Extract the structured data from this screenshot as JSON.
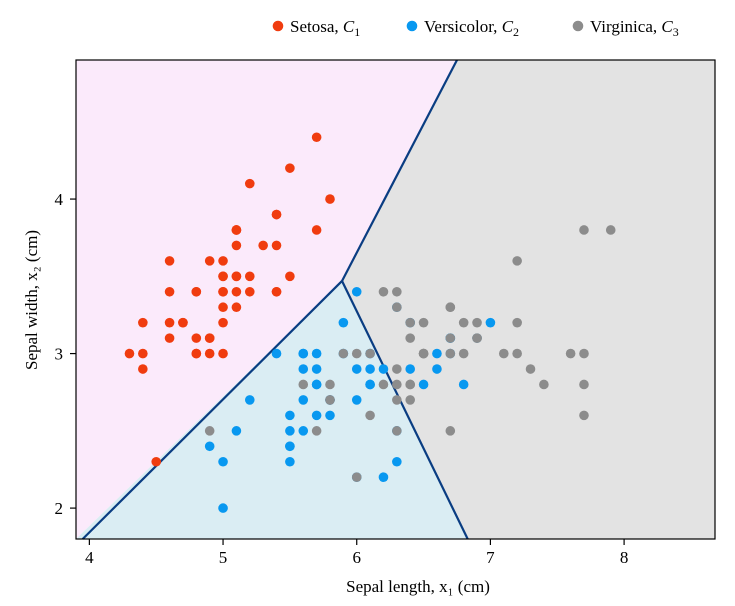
{
  "chart_data": {
    "type": "scatter",
    "xlabel": "Sepal length, x₁ (cm)",
    "ylabel": "Sepal width, x₂ (cm)",
    "xlim": [
      3.9,
      8.68
    ],
    "ylim": [
      1.8,
      4.9
    ],
    "xticks": [
      4,
      5,
      6,
      7,
      8
    ],
    "yticks": [
      2,
      3,
      4
    ],
    "grid": false,
    "legend_position": "top-right",
    "regions": [
      {
        "class": "C1",
        "color": "#fbeafb",
        "polygon": [
          [
            3.9,
            1.8
          ],
          [
            3.9,
            4.9
          ],
          [
            6.75,
            4.9
          ],
          [
            5.89,
            3.47
          ]
        ]
      },
      {
        "class": "C2",
        "color": "#daedf3",
        "polygon": [
          [
            3.9,
            1.8
          ],
          [
            5.89,
            3.47
          ],
          [
            6.83,
            1.8
          ]
        ]
      },
      {
        "class": "C3",
        "color": "#e3e3e3",
        "polygon": [
          [
            5.89,
            3.47
          ],
          [
            6.75,
            4.9
          ],
          [
            8.68,
            4.9
          ],
          [
            8.68,
            1.8
          ],
          [
            6.83,
            1.8
          ]
        ]
      }
    ],
    "boundaries": [
      [
        [
          3.95,
          1.8
        ],
        [
          5.89,
          3.47
        ]
      ],
      [
        [
          5.89,
          3.47
        ],
        [
          6.75,
          4.9
        ]
      ],
      [
        [
          5.89,
          3.47
        ],
        [
          6.83,
          1.8
        ]
      ]
    ],
    "boundary_color": "#0a3d82",
    "series": [
      {
        "name": "Setosa, ",
        "name_sub": "1",
        "color": "#f03c0f",
        "x": [
          5.1,
          4.9,
          4.7,
          4.6,
          5.0,
          5.4,
          4.6,
          5.0,
          4.4,
          4.9,
          5.4,
          4.8,
          4.8,
          4.3,
          5.8,
          5.7,
          5.4,
          5.1,
          5.7,
          5.1,
          5.4,
          5.1,
          4.6,
          5.1,
          4.8,
          5.0,
          5.0,
          5.2,
          5.2,
          4.7,
          4.8,
          5.4,
          5.2,
          5.5,
          4.9,
          5.0,
          5.5,
          4.9,
          4.4,
          5.1,
          5.0,
          4.5,
          4.4,
          5.0,
          5.1,
          4.8,
          5.1,
          4.6,
          5.3,
          5.0
        ],
        "y": [
          3.5,
          3.0,
          3.2,
          3.1,
          3.6,
          3.9,
          3.4,
          3.4,
          2.9,
          3.1,
          3.7,
          3.4,
          3.0,
          3.0,
          4.0,
          4.4,
          3.9,
          3.5,
          3.8,
          3.8,
          3.4,
          3.7,
          3.6,
          3.3,
          3.4,
          3.0,
          3.4,
          3.5,
          3.4,
          3.2,
          3.1,
          3.4,
          4.1,
          4.2,
          3.1,
          3.2,
          3.5,
          3.6,
          3.0,
          3.4,
          3.5,
          2.3,
          3.2,
          3.5,
          3.8,
          3.0,
          3.8,
          3.2,
          3.7,
          3.3
        ]
      },
      {
        "name": "Versicolor, ",
        "name_sub": "2",
        "color": "#0898f0",
        "x": [
          7.0,
          6.4,
          6.9,
          5.5,
          6.5,
          5.7,
          6.3,
          4.9,
          6.6,
          5.2,
          5.0,
          5.9,
          6.0,
          6.1,
          5.6,
          6.7,
          5.6,
          5.8,
          6.2,
          5.6,
          5.9,
          6.1,
          6.3,
          6.1,
          6.4,
          6.6,
          6.8,
          6.7,
          6.0,
          5.7,
          5.5,
          5.5,
          5.8,
          6.0,
          5.4,
          6.0,
          6.7,
          6.3,
          5.6,
          5.5,
          5.5,
          6.1,
          5.8,
          5.0,
          5.6,
          5.7,
          5.7,
          6.2,
          5.1,
          5.7
        ],
        "y": [
          3.2,
          3.2,
          3.1,
          2.3,
          2.8,
          2.8,
          3.3,
          2.4,
          2.9,
          2.7,
          2.0,
          3.0,
          2.2,
          2.9,
          2.9,
          3.1,
          3.0,
          2.7,
          2.2,
          2.5,
          3.2,
          2.8,
          2.5,
          2.8,
          2.9,
          3.0,
          2.8,
          3.0,
          2.9,
          2.6,
          2.4,
          2.4,
          2.7,
          2.7,
          3.0,
          3.4,
          3.1,
          2.3,
          3.0,
          2.5,
          2.6,
          3.0,
          2.6,
          2.3,
          2.7,
          3.0,
          2.9,
          2.9,
          2.5,
          2.8
        ]
      },
      {
        "name": "Virginica, ",
        "name_sub": "3",
        "color": "#8c8c8c",
        "x": [
          6.3,
          5.8,
          7.1,
          6.3,
          6.5,
          7.6,
          4.9,
          7.3,
          6.7,
          7.2,
          6.5,
          6.4,
          6.8,
          5.7,
          5.8,
          6.4,
          6.5,
          7.7,
          7.7,
          6.0,
          6.9,
          5.6,
          7.7,
          6.3,
          6.7,
          7.2,
          6.2,
          6.1,
          6.4,
          7.2,
          7.4,
          7.9,
          6.4,
          6.3,
          6.1,
          7.7,
          6.3,
          6.4,
          6.0,
          6.9,
          6.7,
          6.9,
          5.8,
          6.8,
          6.7,
          6.7,
          6.3,
          6.5,
          6.2,
          5.9
        ],
        "y": [
          3.3,
          2.7,
          3.0,
          2.9,
          3.0,
          3.0,
          2.5,
          2.9,
          2.5,
          3.6,
          3.2,
          2.7,
          3.0,
          2.5,
          2.8,
          3.2,
          3.0,
          3.8,
          2.6,
          2.2,
          3.2,
          2.8,
          2.8,
          2.7,
          3.3,
          3.2,
          2.8,
          3.0,
          2.8,
          3.0,
          2.8,
          3.8,
          2.8,
          2.8,
          2.6,
          3.0,
          3.4,
          3.1,
          3.0,
          3.1,
          3.1,
          3.1,
          2.7,
          3.2,
          3.3,
          3.0,
          2.5,
          3.0,
          3.4,
          3.0
        ]
      }
    ],
    "class_symbol": "C"
  }
}
